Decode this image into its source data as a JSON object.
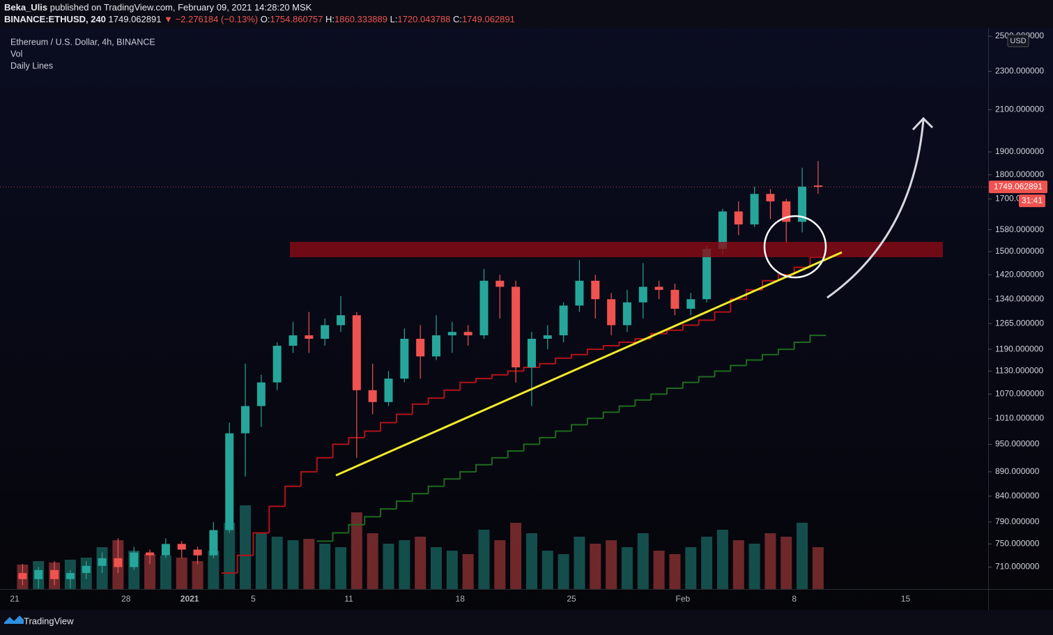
{
  "header": {
    "author": "Beka_Ulis",
    "published": "published on TradingView.com, February 09, 2021 14:28:20 MSK",
    "symbol": "BINANCE:ETHUSD, 240",
    "price": "1749.062891",
    "change": "▼ −2.276184 (−0.13%)",
    "ohlc": [
      {
        "key": "O:",
        "value": "1754.860757"
      },
      {
        "key": "H:",
        "value": "1860.333889"
      },
      {
        "key": "L:",
        "value": "1720.043788"
      },
      {
        "key": "C:",
        "value": "1749.062891"
      }
    ]
  },
  "footer": "TradingView",
  "chart_data": {
    "type": "candlestick",
    "title": "Ethereum / U.S. Dollar, 4h, BINANCE",
    "indicators": [
      "Vol",
      "Daily Lines"
    ],
    "currency_badge": "USD",
    "log_scale": true,
    "grid": false,
    "up_color": "#26a69a",
    "down_color": "#ef5350",
    "last_price": {
      "value": 1749.062891,
      "label": "1749.062891"
    },
    "countdown": "31:41",
    "categories": [
      "21",
      null,
      null,
      null,
      null,
      null,
      null,
      "28",
      null,
      null,
      null,
      "2021",
      null,
      null,
      null,
      "5",
      null,
      null,
      null,
      null,
      null,
      "11",
      null,
      null,
      null,
      null,
      null,
      null,
      "18",
      null,
      null,
      null,
      null,
      null,
      null,
      "25",
      null,
      null,
      null,
      null,
      null,
      null,
      "Feb",
      null,
      null,
      null,
      null,
      null,
      null,
      "8",
      null,
      null,
      null,
      null,
      null,
      null,
      "15",
      null,
      null,
      null,
      null,
      null
    ],
    "open": [
      700,
      690,
      705,
      690,
      700,
      712,
      725,
      710,
      735,
      730,
      750,
      740,
      730,
      775,
      975,
      1040,
      1100,
      1200,
      1230,
      1220,
      1260,
      1290,
      1080,
      1050,
      1110,
      1220,
      1170,
      1230,
      1240,
      1230,
      1400,
      1380,
      1140,
      1220,
      1230,
      1320,
      1400,
      1340,
      1260,
      1330,
      1380,
      1370,
      1310,
      1340,
      1510,
      1650,
      1600,
      1720,
      1690,
      1610,
      1754.860757,
      null,
      null,
      null,
      null,
      null,
      null,
      null,
      null,
      null,
      null,
      null
    ],
    "high": [
      715,
      710,
      720,
      705,
      720,
      735,
      760,
      745,
      740,
      760,
      755,
      745,
      790,
      1000,
      1150,
      1120,
      1210,
      1270,
      1300,
      1280,
      1350,
      1300,
      1150,
      1130,
      1250,
      1260,
      1290,
      1270,
      1260,
      1440,
      1420,
      1400,
      1240,
      1260,
      1330,
      1470,
      1420,
      1360,
      1370,
      1460,
      1400,
      1390,
      1360,
      1520,
      1660,
      1690,
      1750,
      1740,
      1700,
      1830,
      1860.333889,
      null,
      null,
      null,
      null,
      null,
      null,
      null,
      null,
      null,
      null,
      null
    ],
    "low": [
      680,
      675,
      680,
      675,
      690,
      700,
      700,
      705,
      715,
      725,
      725,
      715,
      725,
      770,
      880,
      990,
      1080,
      1180,
      1180,
      1200,
      1240,
      920,
      1020,
      1040,
      1100,
      1110,
      1160,
      1180,
      1200,
      1220,
      1280,
      1100,
      1040,
      1190,
      1210,
      1300,
      1280,
      1230,
      1240,
      1280,
      1340,
      1290,
      1290,
      1330,
      1490,
      1560,
      1590,
      1620,
      1530,
      1570,
      1720.043788,
      null,
      null,
      null,
      null,
      null,
      null,
      null,
      null,
      null,
      null,
      null
    ],
    "close": [
      690,
      705,
      690,
      700,
      712,
      725,
      710,
      735,
      730,
      750,
      740,
      730,
      775,
      975,
      1040,
      1100,
      1200,
      1230,
      1220,
      1260,
      1290,
      1080,
      1050,
      1110,
      1220,
      1170,
      1230,
      1240,
      1230,
      1400,
      1380,
      1140,
      1220,
      1230,
      1320,
      1400,
      1340,
      1260,
      1330,
      1380,
      1370,
      1310,
      1340,
      1510,
      1650,
      1600,
      1720,
      1690,
      1610,
      1750,
      1749.062891,
      null,
      null,
      null,
      null,
      null,
      null,
      null,
      null,
      null,
      null,
      null
    ],
    "volume": [
      35,
      40,
      38,
      42,
      45,
      60,
      70,
      55,
      50,
      48,
      45,
      40,
      55,
      95,
      120,
      80,
      75,
      70,
      72,
      65,
      60,
      110,
      80,
      65,
      70,
      75,
      60,
      55,
      50,
      85,
      70,
      95,
      80,
      55,
      50,
      75,
      65,
      70,
      60,
      80,
      55,
      50,
      60,
      75,
      85,
      70,
      65,
      80,
      75,
      95,
      60,
      null,
      null,
      null,
      null,
      null,
      null,
      null,
      null,
      null,
      null,
      null
    ],
    "lines": [
      {
        "color": "#b3121a",
        "values": [
          null,
          null,
          null,
          null,
          null,
          null,
          null,
          null,
          null,
          null,
          null,
          null,
          null,
          700,
          730,
          770,
          820,
          860,
          890,
          920,
          950,
          965,
          980,
          1000,
          1020,
          1045,
          1060,
          1080,
          1100,
          1110,
          1120,
          1130,
          1140,
          1150,
          1165,
          1175,
          1190,
          1200,
          1210,
          1220,
          1235,
          1245,
          1260,
          1275,
          1300,
          1340,
          1370,
          1400,
          1420,
          1445,
          1480,
          null,
          null,
          null,
          null,
          null,
          null,
          null,
          null,
          null,
          null,
          null
        ]
      },
      {
        "color": "#1f6b1f",
        "values": [
          null,
          null,
          null,
          null,
          null,
          null,
          null,
          null,
          null,
          null,
          null,
          null,
          null,
          null,
          null,
          null,
          null,
          null,
          null,
          755,
          770,
          785,
          800,
          815,
          830,
          845,
          860,
          875,
          890,
          905,
          920,
          935,
          950,
          965,
          980,
          995,
          1010,
          1025,
          1040,
          1055,
          1070,
          1085,
          1100,
          1115,
          1130,
          1145,
          1160,
          1175,
          1190,
          1210,
          1230,
          null,
          null,
          null,
          null,
          null,
          null,
          null,
          null,
          null,
          null,
          null
        ]
      }
    ],
    "ylim": [
      674,
      2529
    ],
    "yticks": [
      {
        "value": 2500,
        "label": "2500.000000"
      },
      {
        "value": 2300,
        "label": "2300.000000"
      },
      {
        "value": 2100,
        "label": "2100.000000"
      },
      {
        "value": 1900,
        "label": "1900.000000"
      },
      {
        "value": 1800,
        "label": "1800.000000"
      },
      {
        "value": 1700,
        "label": "1700.000000"
      },
      {
        "value": 1580,
        "label": "1580.000000"
      },
      {
        "value": 1500,
        "label": "1500.000000"
      },
      {
        "value": 1420,
        "label": "1420.000000"
      },
      {
        "value": 1340,
        "label": "1340.000000"
      },
      {
        "value": 1265,
        "label": "1265.000000"
      },
      {
        "value": 1190,
        "label": "1190.000000"
      },
      {
        "value": 1130,
        "label": "1130.000000"
      },
      {
        "value": 1070,
        "label": "1070.000000"
      },
      {
        "value": 1010,
        "label": "1010.000000"
      },
      {
        "value": 950,
        "label": "950.000000"
      },
      {
        "value": 890,
        "label": "890.000000"
      },
      {
        "value": 840,
        "label": "840.000000"
      },
      {
        "value": 790,
        "label": "790.000000"
      },
      {
        "value": 750,
        "label": "750.000000"
      },
      {
        "value": 710,
        "label": "710.000000"
      }
    ]
  }
}
